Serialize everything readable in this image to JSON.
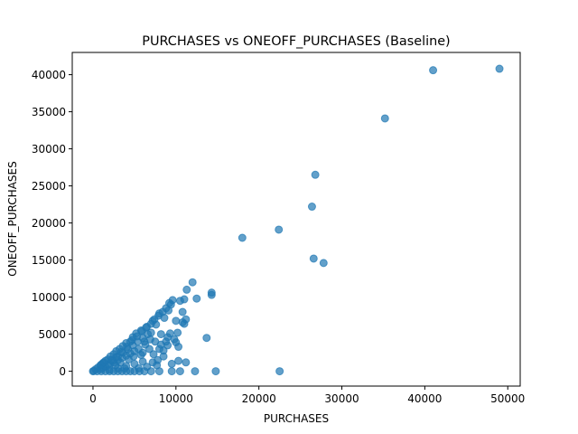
{
  "chart_data": {
    "type": "scatter",
    "title": "PURCHASES vs ONEOFF_PURCHASES (Baseline)",
    "xlabel": "PURCHASES",
    "ylabel": "ONEOFF_PURCHASES",
    "xlim": [
      -2500,
      51500
    ],
    "ylim": [
      -2000,
      43000
    ],
    "xticks": [
      0,
      10000,
      20000,
      30000,
      40000,
      50000
    ],
    "yticks": [
      0,
      5000,
      10000,
      15000,
      20000,
      25000,
      30000,
      35000,
      40000
    ],
    "grid": false,
    "legend": "none",
    "marker_color": "#1f77b4",
    "marker_alpha": 0.7,
    "series": [
      {
        "points": [
          [
            49000,
            40800
          ],
          [
            41000,
            40600
          ],
          [
            35200,
            34100
          ],
          [
            26800,
            26500
          ],
          [
            26400,
            22200
          ],
          [
            22400,
            19100
          ],
          [
            18000,
            18000
          ],
          [
            26600,
            15200
          ],
          [
            27800,
            14600
          ],
          [
            22500,
            0
          ],
          [
            14300,
            10600
          ],
          [
            14300,
            10300
          ],
          [
            12000,
            12000
          ],
          [
            11300,
            11000
          ],
          [
            14800,
            0
          ],
          [
            12300,
            0
          ],
          [
            10500,
            0
          ],
          [
            9500,
            0
          ],
          [
            8000,
            0
          ],
          [
            7000,
            0
          ],
          [
            12500,
            9800
          ],
          [
            11000,
            9700
          ],
          [
            10500,
            9500
          ],
          [
            9600,
            9600
          ],
          [
            9200,
            9200
          ],
          [
            10800,
            8000
          ],
          [
            11200,
            7000
          ],
          [
            10800,
            6600
          ],
          [
            11000,
            6400
          ],
          [
            10000,
            6800
          ],
          [
            13700,
            4500
          ],
          [
            10000,
            3900
          ],
          [
            10300,
            3300
          ],
          [
            10300,
            1400
          ],
          [
            11200,
            1200
          ],
          [
            9500,
            1000
          ],
          [
            8500,
            2000
          ],
          [
            8000,
            3000
          ],
          [
            7500,
            4000
          ],
          [
            9000,
            4600
          ],
          [
            9000,
            3500
          ],
          [
            8500,
            2800
          ],
          [
            7800,
            1500
          ],
          [
            7200,
            1200
          ],
          [
            6500,
            600
          ],
          [
            5500,
            400
          ],
          [
            6000,
            2500
          ],
          [
            6800,
            3000
          ],
          [
            8200,
            5000
          ],
          [
            9300,
            5100
          ],
          [
            6200,
            4000
          ],
          [
            7000,
            5200
          ],
          [
            7600,
            6300
          ],
          [
            8600,
            7200
          ],
          [
            9100,
            8200
          ],
          [
            8000,
            7800
          ],
          [
            7200,
            6800
          ],
          [
            6500,
            6000
          ],
          [
            5800,
            5500
          ],
          [
            5200,
            5100
          ],
          [
            4800,
            4600
          ],
          [
            4500,
            4000
          ],
          [
            4000,
            3800
          ],
          [
            3600,
            3400
          ],
          [
            3200,
            3000
          ],
          [
            2800,
            2700
          ],
          [
            2500,
            2300
          ],
          [
            2100,
            2000
          ],
          [
            1800,
            1600
          ],
          [
            1500,
            1400
          ],
          [
            1200,
            1100
          ],
          [
            900,
            800
          ],
          [
            600,
            500
          ],
          [
            300,
            250
          ],
          [
            100,
            50
          ],
          [
            0,
            0
          ],
          [
            500,
            0
          ],
          [
            1000,
            0
          ],
          [
            1500,
            0
          ],
          [
            2000,
            0
          ],
          [
            2500,
            0
          ],
          [
            3000,
            0
          ],
          [
            3500,
            0
          ],
          [
            4000,
            0
          ],
          [
            4500,
            0
          ],
          [
            5000,
            0
          ],
          [
            5600,
            0
          ],
          [
            6200,
            0
          ],
          [
            1000,
            300
          ],
          [
            1500,
            600
          ],
          [
            2000,
            900
          ],
          [
            2500,
            1200
          ],
          [
            3000,
            1500
          ],
          [
            3500,
            1800
          ],
          [
            4000,
            2100
          ],
          [
            4500,
            2400
          ],
          [
            5000,
            2700
          ],
          [
            5500,
            3000
          ],
          [
            1200,
            500
          ],
          [
            1800,
            900
          ],
          [
            2400,
            1400
          ],
          [
            3000,
            2000
          ],
          [
            3600,
            2500
          ],
          [
            4200,
            3000
          ],
          [
            4800,
            3500
          ],
          [
            5400,
            4000
          ],
          [
            6000,
            4500
          ],
          [
            6600,
            5000
          ],
          [
            2000,
            200
          ],
          [
            3000,
            400
          ],
          [
            4000,
            700
          ],
          [
            5000,
            1000
          ],
          [
            6000,
            1300
          ],
          [
            2800,
            1900
          ],
          [
            3400,
            2600
          ],
          [
            4100,
            3300
          ],
          [
            4700,
            4200
          ],
          [
            5300,
            4700
          ],
          [
            5900,
            5400
          ],
          [
            6400,
            5900
          ],
          [
            7000,
            6400
          ],
          [
            7400,
            7000
          ],
          [
            7900,
            7500
          ],
          [
            8400,
            8000
          ],
          [
            8800,
            8500
          ],
          [
            9400,
            9000
          ],
          [
            1000,
            900
          ],
          [
            1300,
            1200
          ],
          [
            2200,
            1500
          ],
          [
            2700,
            800
          ],
          [
            3300,
            1200
          ],
          [
            3800,
            400
          ],
          [
            4300,
            1600
          ],
          [
            4900,
            2000
          ],
          [
            5800,
            2200
          ],
          [
            6300,
            3600
          ],
          [
            6900,
            4300
          ],
          [
            7300,
            2300
          ],
          [
            10200,
            5200
          ],
          [
            9800,
            4300
          ],
          [
            8800,
            4000
          ],
          [
            8200,
            3600
          ],
          [
            7700,
            800
          ]
        ]
      }
    ]
  }
}
